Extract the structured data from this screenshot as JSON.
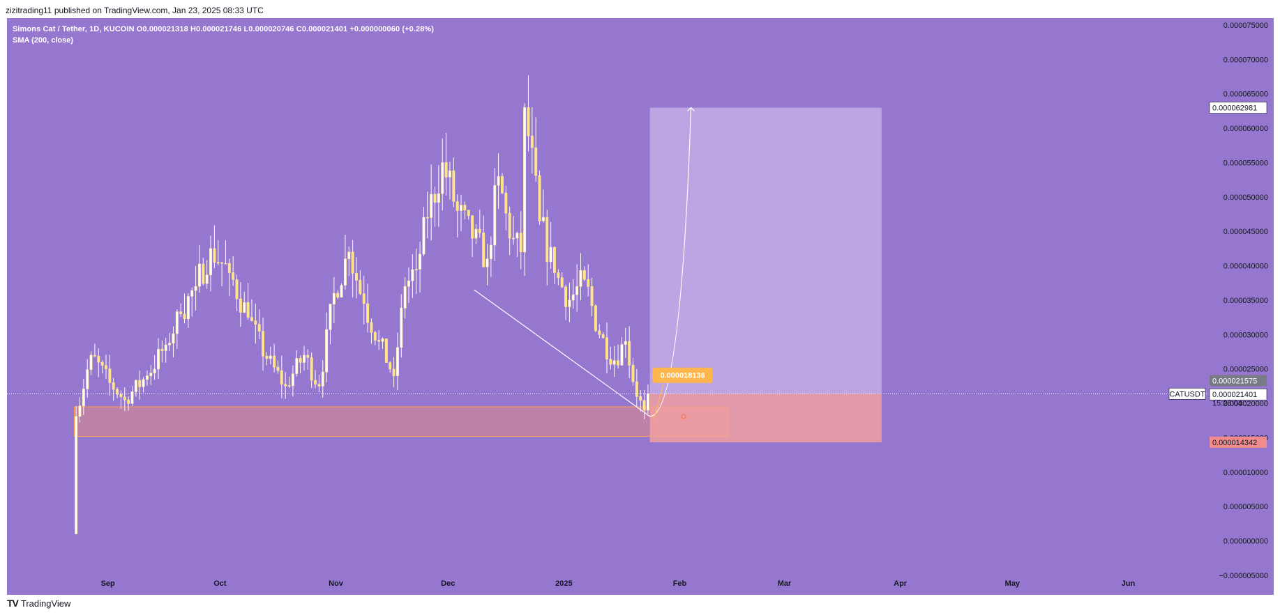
{
  "header": {
    "publisher": "zizitrading11 published on TradingView.com, Jan 23, 2025 08:33 UTC"
  },
  "legend": {
    "line1": "Simons Cat / Tether, 1D, KUCOIN  O0.000021318  H0.000021746  L0.000020746  C0.000021401  +0.000000060 (+0.28%)",
    "line2": "SMA (200, close)"
  },
  "footer": {
    "brand": "TradingView",
    "logo_icon": "tradingview-logo-icon"
  },
  "colors": {
    "background": "#9677cf",
    "candle": "#ffe58a",
    "wick": "#ffffff",
    "profit_zone": "#c8b4e8",
    "stop_zone": "#f5a3a0",
    "entry_label": "#ffb74d",
    "stop_label": "#f28b8b"
  },
  "chart_data": {
    "type": "candlestick",
    "symbol": "CATUSDT",
    "yaxis": {
      "ylim": [
        -5e-06,
        7.6e-05
      ],
      "ticks": [
        "0.000075000",
        "0.000070000",
        "0.000065000",
        "0.000060000",
        "0.000055000",
        "0.000050000",
        "0.000045000",
        "0.000040000",
        "0.000035000",
        "0.000030000",
        "0.000025000",
        "0.000020000",
        "0.000015000",
        "0.000010000",
        "0.000005000",
        "0.000000000",
        "−0.000005000"
      ],
      "tick_values": [
        7.5e-05,
        7e-05,
        6.5e-05,
        6e-05,
        5.5e-05,
        5e-05,
        4.5e-05,
        4e-05,
        3.5e-05,
        3e-05,
        2.5e-05,
        2e-05,
        1.5e-05,
        1e-05,
        5e-06,
        0,
        -5e-06
      ]
    },
    "xaxis": {
      "ticks": [
        "Sep",
        "Oct",
        "Nov",
        "Dec",
        "2025",
        "Feb",
        "Mar",
        "Apr",
        "May",
        "Jun"
      ],
      "tick_dates": [
        "2024-09-01",
        "2024-10-01",
        "2024-11-01",
        "2024-12-01",
        "2025-01-01",
        "2025-02-01",
        "2025-03-01",
        "2025-04-01",
        "2025-05-01",
        "2025-06-01"
      ],
      "xlim": [
        "2024-08-05",
        "2025-06-22"
      ]
    },
    "price_path": [
      [
        "2024-08-23",
        1e-06,
        1.81e-05
      ],
      [
        "2024-08-24",
        1.81e-05,
        2.7e-05
      ],
      [
        "2024-08-28",
        2.7e-05,
        2.3e-05
      ],
      [
        "2024-09-02",
        2.3e-05,
        2.05e-05
      ],
      [
        "2024-09-06",
        2.05e-05,
        2.4e-05
      ],
      [
        "2024-09-12",
        2.4e-05,
        2.85e-05
      ],
      [
        "2024-09-17",
        2.85e-05,
        3.3e-05
      ],
      [
        "2024-09-21",
        3.3e-05,
        3.7e-05
      ],
      [
        "2024-09-25",
        3.7e-05,
        4.25e-05
      ],
      [
        "2024-09-29",
        4.25e-05,
        3.9e-05
      ],
      [
        "2024-10-04",
        3.9e-05,
        3.25e-05
      ],
      [
        "2024-10-09",
        3.25e-05,
        2.65e-05
      ],
      [
        "2024-10-14",
        2.65e-05,
        2.25e-05
      ],
      [
        "2024-10-19",
        2.25e-05,
        2.7e-05
      ],
      [
        "2024-10-24",
        2.7e-05,
        2.25e-05
      ],
      [
        "2024-10-28",
        2.25e-05,
        3.6e-05
      ],
      [
        "2024-11-01",
        3.6e-05,
        4.2e-05
      ],
      [
        "2024-11-05",
        4.2e-05,
        3.45e-05
      ],
      [
        "2024-11-09",
        3.45e-05,
        2.9e-05
      ],
      [
        "2024-11-13",
        2.9e-05,
        2.4e-05
      ],
      [
        "2024-11-17",
        2.4e-05,
        3.7e-05
      ],
      [
        "2024-11-20",
        3.7e-05,
        3.95e-05
      ],
      [
        "2024-11-23",
        3.95e-05,
        4.7e-05
      ],
      [
        "2024-11-26",
        4.7e-05,
        5.5e-05
      ],
      [
        "2024-11-30",
        5.5e-05,
        4.8e-05
      ],
      [
        "2024-12-04",
        4.8e-05,
        4.4e-05
      ],
      [
        "2024-12-08",
        4.4e-05,
        4.1e-05
      ],
      [
        "2024-12-12",
        4.1e-05,
        5.3e-05
      ],
      [
        "2024-12-15",
        5.3e-05,
        4.4e-05
      ],
      [
        "2024-12-18",
        4.4e-05,
        4.2e-05
      ],
      [
        "2024-12-21",
        4.2e-05,
        6.3e-05
      ],
      [
        "2024-12-22",
        6.3e-05,
        4.65e-05
      ],
      [
        "2024-12-26",
        4.65e-05,
        3.9e-05
      ],
      [
        "2024-12-30",
        3.9e-05,
        3.5e-05
      ],
      [
        "2025-01-03",
        3.5e-05,
        3.8e-05
      ],
      [
        "2025-01-07",
        3.8e-05,
        3e-05
      ],
      [
        "2025-01-11",
        3e-05,
        2.62e-05
      ],
      [
        "2025-01-15",
        2.62e-05,
        2.9e-05
      ],
      [
        "2025-01-18",
        2.9e-05,
        2.1e-05
      ],
      [
        "2025-01-21",
        2.1e-05,
        1.9e-05
      ],
      [
        "2025-01-23",
        1.9e-05,
        2.14e-05
      ]
    ],
    "annotations": {
      "demand_zone": {
        "x0": "2024-08-23",
        "x1": "2025-02-14",
        "y0": 1.52e-05,
        "y1": 1.95e-05
      },
      "long_position": {
        "x0": "2025-01-24",
        "x1": "2025-03-27",
        "entry": 2.14e-05,
        "target": 6.2981e-05,
        "stop": 1.4342e-05
      },
      "trendline": {
        "x0": "2024-12-08",
        "y0": 3.65e-05,
        "x1": "2025-01-24",
        "y1": 1.81e-05
      },
      "projection_curve": {
        "x0": "2025-01-24",
        "y0": 1.81e-05,
        "x1": "2025-02-04",
        "y1": 6.3e-05
      },
      "entry_marker": {
        "x": "2025-02-02",
        "y": 1.8136e-05,
        "label": "0.000018136"
      }
    },
    "price_labels": {
      "target": "0.000062981",
      "sma": "0.000021575",
      "current": "0.000021401",
      "countdown": "15:26:04",
      "stop": "0.000014342",
      "symbol": "CATUSDT"
    },
    "grid": false,
    "legend_position": "top-left"
  }
}
